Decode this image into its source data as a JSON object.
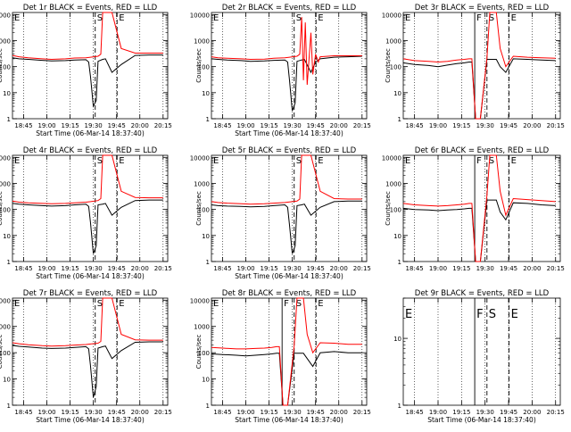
{
  "chart_data": [
    {
      "type": "line",
      "title": "Det 1r BLACK = Events, RED = LLD",
      "xlabel": "Start Time (06-Mar-14 18:37:40)",
      "ylabel": "Counts/sec",
      "x_ticks": [
        "18:45",
        "19:00",
        "19:15",
        "19:30",
        "19:45",
        "20:00",
        "20:15"
      ],
      "y_ticks": [
        "1",
        "10",
        "100",
        "1000",
        "10000"
      ],
      "ylim": [
        1,
        12000
      ],
      "yscale": "log",
      "markers": [
        "E",
        "S",
        "E"
      ],
      "series": [
        {
          "color": "#000000",
          "x": [
            18.63,
            18.7,
            18.8,
            18.95,
            19.05,
            19.2,
            19.3,
            19.42,
            19.45,
            19.47,
            19.5,
            19.53,
            19.55,
            19.6,
            19.63,
            19.7,
            19.8,
            19.95,
            20.1,
            20.25
          ],
          "y": [
            220,
            200,
            190,
            175,
            165,
            170,
            180,
            185,
            150,
            40,
            3,
            5,
            160,
            190,
            200,
            60,
            120,
            270,
            280,
            280
          ]
        },
        {
          "color": "#ff0000",
          "x": [
            18.63,
            18.7,
            18.8,
            18.95,
            19.05,
            19.2,
            19.3,
            19.42,
            19.47,
            19.55,
            19.58,
            19.6,
            19.63,
            19.7,
            19.8,
            19.95,
            20.1,
            20.25
          ],
          "y": [
            270,
            240,
            220,
            200,
            190,
            200,
            215,
            220,
            230,
            250,
            300,
            12000,
            12000,
            12000,
            500,
            330,
            330,
            330
          ]
        }
      ]
    },
    {
      "type": "line",
      "title": "Det 2r BLACK = Events, RED = LLD",
      "xlabel": "Start Time (06-Mar-14 18:37:40)",
      "ylabel": "Counts/sec",
      "x_ticks": [
        "18:45",
        "19:00",
        "19:15",
        "19:30",
        "19:45",
        "20:00",
        "20:15"
      ],
      "y_ticks": [
        "1",
        "10",
        "100",
        "1000",
        "10000"
      ],
      "ylim": [
        1,
        12000
      ],
      "yscale": "log",
      "markers": [
        "E",
        "S",
        "E"
      ],
      "series": [
        {
          "color": "#000000",
          "x": [
            18.63,
            18.7,
            18.8,
            18.95,
            19.05,
            19.2,
            19.3,
            19.42,
            19.45,
            19.47,
            19.5,
            19.53,
            19.55,
            19.6,
            19.63,
            19.7,
            19.75,
            19.8,
            19.95,
            20.1,
            20.25
          ],
          "y": [
            200,
            190,
            180,
            170,
            160,
            165,
            175,
            180,
            150,
            30,
            2,
            4,
            160,
            180,
            190,
            60,
            150,
            200,
            230,
            240,
            250
          ]
        },
        {
          "color": "#ff0000",
          "x": [
            18.63,
            18.7,
            18.8,
            18.95,
            19.05,
            19.2,
            19.3,
            19.42,
            19.47,
            19.55,
            19.58,
            19.6,
            19.62,
            19.64,
            19.66,
            19.7,
            19.72,
            19.75,
            19.78,
            19.8,
            19.95,
            20.1,
            20.25
          ],
          "y": [
            240,
            220,
            210,
            200,
            190,
            195,
            210,
            220,
            230,
            250,
            300,
            8000,
            30,
            5000,
            20,
            2000,
            50,
            300,
            150,
            240,
            260,
            260,
            260
          ]
        }
      ]
    },
    {
      "type": "line",
      "title": "Det 3r BLACK = Events, RED = LLD",
      "xlabel": "",
      "ylabel": "Counts/sec",
      "x_ticks": [
        "18:45",
        "19:00",
        "19:15",
        "19:30",
        "19:45",
        "20:00",
        "20:15"
      ],
      "y_ticks": [
        "1",
        "10",
        "100",
        "1000",
        "10000"
      ],
      "ylim": [
        1,
        12000
      ],
      "yscale": "log",
      "markers": [
        "E",
        "F",
        "S",
        "E"
      ],
      "series": [
        {
          "color": "#000000",
          "x": [
            18.63,
            18.75,
            18.9,
            19.0,
            19.1,
            19.2,
            19.28,
            19.33,
            19.36,
            19.4,
            19.45,
            19.52,
            19.58,
            19.62,
            19.66,
            19.72,
            19.8,
            19.95,
            20.1,
            20.25
          ],
          "y": [
            140,
            120,
            110,
            100,
            115,
            130,
            140,
            150,
            150,
            1,
            1,
            190,
            190,
            190,
            100,
            60,
            200,
            190,
            180,
            170
          ]
        },
        {
          "color": "#ff0000",
          "x": [
            18.63,
            18.75,
            18.9,
            19.0,
            19.1,
            19.2,
            19.28,
            19.33,
            19.36,
            19.4,
            19.45,
            19.52,
            19.55,
            19.58,
            19.62,
            19.66,
            19.72,
            19.8,
            19.95,
            20.1,
            20.25
          ],
          "y": [
            200,
            170,
            160,
            150,
            160,
            180,
            190,
            200,
            200,
            1,
            1,
            220,
            12000,
            12000,
            12000,
            500,
            100,
            250,
            230,
            220,
            210
          ]
        }
      ]
    },
    {
      "type": "line",
      "title": "Det 4r BLACK = Events, RED = LLD",
      "xlabel": "Start Time (06-Mar-14 18:37:40)",
      "ylabel": "Counts/sec",
      "x_ticks": [
        "18:45",
        "19:00",
        "19:15",
        "19:30",
        "19:45",
        "20:00",
        "20:15"
      ],
      "y_ticks": [
        "1",
        "10",
        "100",
        "1000",
        "10000"
      ],
      "ylim": [
        1,
        12000
      ],
      "yscale": "log",
      "markers": [
        "E",
        "S",
        "E"
      ],
      "series": [
        {
          "color": "#000000",
          "x": [
            18.63,
            18.7,
            18.8,
            18.95,
            19.05,
            19.2,
            19.3,
            19.42,
            19.45,
            19.47,
            19.5,
            19.53,
            19.55,
            19.6,
            19.63,
            19.7,
            19.8,
            19.95,
            20.1,
            20.25
          ],
          "y": [
            170,
            160,
            150,
            140,
            135,
            140,
            150,
            160,
            130,
            30,
            2,
            4,
            150,
            160,
            170,
            60,
            120,
            220,
            230,
            230
          ]
        },
        {
          "color": "#ff0000",
          "x": [
            18.63,
            18.7,
            18.8,
            18.95,
            19.05,
            19.2,
            19.3,
            19.42,
            19.47,
            19.55,
            19.58,
            19.6,
            19.63,
            19.7,
            19.8,
            19.95,
            20.1,
            20.25
          ],
          "y": [
            210,
            190,
            180,
            170,
            165,
            170,
            180,
            190,
            200,
            220,
            260,
            12000,
            12000,
            12000,
            500,
            290,
            280,
            280
          ]
        }
      ]
    },
    {
      "type": "line",
      "title": "Det 5r BLACK = Events, RED = LLD",
      "xlabel": "Start Time (06-Mar-14 18:37:40)",
      "ylabel": "Counts/sec",
      "x_ticks": [
        "18:45",
        "19:00",
        "19:15",
        "19:30",
        "19:45",
        "20:00",
        "20:15"
      ],
      "y_ticks": [
        "1",
        "10",
        "100",
        "1000",
        "10000"
      ],
      "ylim": [
        1,
        12000
      ],
      "yscale": "log",
      "markers": [
        "E",
        "S",
        "E"
      ],
      "series": [
        {
          "color": "#000000",
          "x": [
            18.63,
            18.7,
            18.8,
            18.95,
            19.05,
            19.2,
            19.3,
            19.42,
            19.45,
            19.47,
            19.5,
            19.53,
            19.55,
            19.6,
            19.63,
            19.7,
            19.8,
            19.95,
            20.1,
            20.25
          ],
          "y": [
            150,
            140,
            135,
            130,
            125,
            130,
            140,
            150,
            120,
            25,
            2,
            4,
            140,
            150,
            160,
            60,
            120,
            200,
            210,
            210
          ]
        },
        {
          "color": "#ff0000",
          "x": [
            18.63,
            18.7,
            18.8,
            18.95,
            19.05,
            19.2,
            19.3,
            19.42,
            19.47,
            19.55,
            19.58,
            19.6,
            19.63,
            19.7,
            19.8,
            19.95,
            20.1,
            20.25
          ],
          "y": [
            200,
            185,
            175,
            165,
            160,
            165,
            175,
            185,
            195,
            210,
            250,
            12000,
            12000,
            12000,
            500,
            260,
            250,
            250
          ]
        }
      ]
    },
    {
      "type": "line",
      "title": "Det 6r BLACK = Events, RED = LLD",
      "xlabel": "",
      "ylabel": "Counts/sec",
      "x_ticks": [
        "18:45",
        "19:00",
        "19:15",
        "19:30",
        "19:45",
        "20:00",
        "20:15"
      ],
      "y_ticks": [
        "1",
        "10",
        "100",
        "1000",
        "10000"
      ],
      "ylim": [
        1,
        12000
      ],
      "yscale": "log",
      "markers": [
        "E",
        "F",
        "S",
        "E"
      ],
      "series": [
        {
          "color": "#000000",
          "x": [
            18.63,
            18.75,
            18.9,
            19.0,
            19.1,
            19.2,
            19.28,
            19.33,
            19.36,
            19.4,
            19.45,
            19.52,
            19.58,
            19.62,
            19.66,
            19.72,
            19.8,
            19.95,
            20.1,
            20.25
          ],
          "y": [
            110,
            100,
            95,
            90,
            95,
            100,
            105,
            110,
            110,
            1,
            1,
            230,
            230,
            230,
            80,
            40,
            180,
            170,
            150,
            140
          ]
        },
        {
          "color": "#ff0000",
          "x": [
            18.63,
            18.75,
            18.9,
            19.0,
            19.1,
            19.2,
            19.28,
            19.33,
            19.36,
            19.4,
            19.45,
            19.52,
            19.55,
            19.58,
            19.62,
            19.66,
            19.72,
            19.8,
            19.95,
            20.1,
            20.25
          ],
          "y": [
            170,
            150,
            140,
            135,
            140,
            150,
            160,
            170,
            170,
            1,
            1,
            350,
            12000,
            12000,
            12000,
            500,
            60,
            260,
            240,
            220,
            200
          ]
        }
      ]
    },
    {
      "type": "line",
      "title": "Det 7r BLACK = Events, RED = LLD",
      "xlabel": "Start Time (06-Mar-14 18:37:40)",
      "ylabel": "Counts/sec",
      "x_ticks": [
        "18:45",
        "19:00",
        "19:15",
        "19:30",
        "19:45",
        "20:00",
        "20:15"
      ],
      "y_ticks": [
        "1",
        "10",
        "100",
        "1000",
        "10000"
      ],
      "ylim": [
        1,
        12000
      ],
      "yscale": "log",
      "markers": [
        "E",
        "S",
        "E"
      ],
      "series": [
        {
          "color": "#000000",
          "x": [
            18.63,
            18.7,
            18.8,
            18.95,
            19.05,
            19.2,
            19.3,
            19.42,
            19.45,
            19.47,
            19.5,
            19.53,
            19.55,
            19.6,
            19.63,
            19.7,
            19.8,
            19.95,
            20.1,
            20.25
          ],
          "y": [
            190,
            175,
            165,
            150,
            145,
            150,
            160,
            170,
            140,
            30,
            2,
            5,
            150,
            170,
            180,
            60,
            120,
            250,
            260,
            260
          ]
        },
        {
          "color": "#ff0000",
          "x": [
            18.63,
            18.7,
            18.8,
            18.95,
            19.05,
            19.2,
            19.3,
            19.42,
            19.47,
            19.55,
            19.58,
            19.6,
            19.63,
            19.7,
            19.8,
            19.95,
            20.1,
            20.25
          ],
          "y": [
            240,
            220,
            200,
            185,
            180,
            185,
            195,
            205,
            215,
            230,
            270,
            12000,
            12000,
            12000,
            500,
            310,
            300,
            300
          ]
        }
      ]
    },
    {
      "type": "line",
      "title": "Det 8r BLACK = Events, RED = LLD",
      "xlabel": "Start Time (06-Mar-14 18:37:40)",
      "ylabel": "Counts/sec",
      "x_ticks": [
        "18:45",
        "19:00",
        "19:15",
        "19:30",
        "19:45",
        "20:00",
        "20:15"
      ],
      "y_ticks": [
        "1",
        "10",
        "100",
        "1000",
        "10000"
      ],
      "ylim": [
        1,
        12000
      ],
      "yscale": "log",
      "markers": [
        "E",
        "F",
        "S",
        "E"
      ],
      "series": [
        {
          "color": "#000000",
          "x": [
            18.63,
            18.75,
            18.9,
            19.0,
            19.1,
            19.2,
            19.28,
            19.33,
            19.36,
            19.4,
            19.45,
            19.52,
            19.58,
            19.62,
            19.66,
            19.72,
            19.8,
            19.95,
            20.1,
            20.25
          ],
          "y": [
            90,
            85,
            80,
            75,
            80,
            85,
            90,
            95,
            95,
            1,
            1,
            95,
            95,
            95,
            60,
            30,
            100,
            110,
            100,
            100
          ]
        },
        {
          "color": "#ff0000",
          "x": [
            18.63,
            18.75,
            18.9,
            19.0,
            19.1,
            19.2,
            19.28,
            19.33,
            19.36,
            19.4,
            19.45,
            19.52,
            19.55,
            19.58,
            19.62,
            19.66,
            19.72,
            19.8,
            19.95,
            20.1,
            20.25
          ],
          "y": [
            160,
            150,
            140,
            140,
            145,
            150,
            160,
            170,
            170,
            1,
            1,
            180,
            12000,
            12000,
            12000,
            500,
            100,
            240,
            230,
            210,
            210
          ]
        }
      ]
    },
    {
      "type": "line",
      "title": "Det 9r BLACK = Events, RED = LLD",
      "xlabel": "Start Time (06-Mar-14 18:37:40)",
      "ylabel": "",
      "x_ticks": [
        "18:45",
        "19:00",
        "19:15",
        "19:30",
        "19:45",
        "20:00",
        "20:15"
      ],
      "y_ticks": [
        "1",
        "10"
      ],
      "ylim": [
        1,
        40
      ],
      "yscale": "log",
      "markers": [
        "E",
        "F",
        "S",
        "E"
      ],
      "series": []
    }
  ]
}
